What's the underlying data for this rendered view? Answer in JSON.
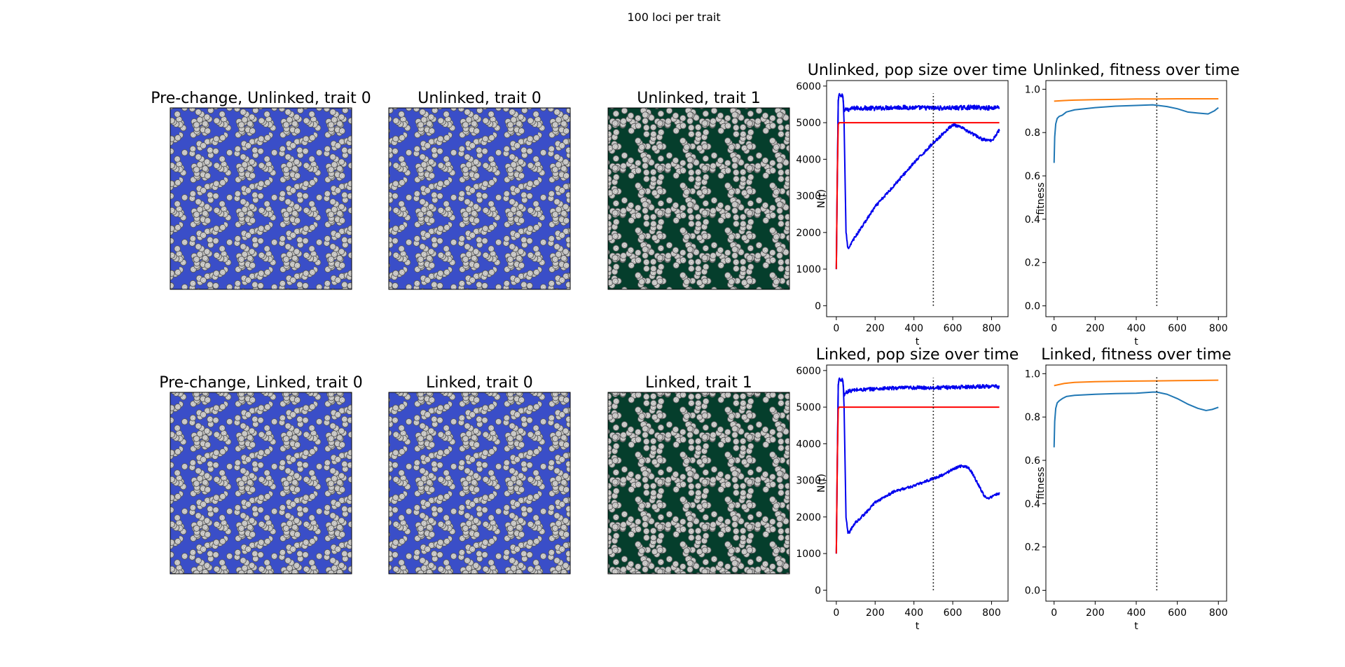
{
  "figure": {
    "suptitle": "100 loci per trait"
  },
  "colors": {
    "trait0_background": "#3a4ec8",
    "trait1_background": "#053e2c",
    "cell_fill": "#c9c9c9",
    "cell_edge": "#555555",
    "pop_series": "#0000ee",
    "capacity_line": "#ff0000",
    "fitness_blue": "#1f77b4",
    "fitness_orange": "#ff7f0e"
  },
  "landscapes": [
    {
      "title": "Pre-change, Unlinked, trait 0",
      "trait": 0
    },
    {
      "title": "Unlinked, trait 0",
      "trait": 0
    },
    {
      "title": "Unlinked, trait 1",
      "trait": 1
    },
    {
      "title": "Pre-change, Linked, trait 0",
      "trait": 0
    },
    {
      "title": "Linked, trait 0",
      "trait": 0
    },
    {
      "title": "Linked, trait 1",
      "trait": 1
    }
  ],
  "chart_data": [
    {
      "type": "line",
      "title": "Unlinked, pop size over time",
      "xlabel": "t",
      "ylabel": "N(t)",
      "xlim": [
        -50,
        885
      ],
      "ylim": [
        -300,
        6150
      ],
      "xticks": [
        0,
        200,
        400,
        600,
        800
      ],
      "yticks": [
        0,
        1000,
        2000,
        3000,
        4000,
        5000,
        6000
      ],
      "vline_x": 500,
      "vline_range": [
        0,
        5800
      ],
      "series": [
        {
          "color": "#0000ee",
          "noise": 60,
          "x": [
            0,
            5,
            10,
            15,
            20,
            25,
            30,
            35,
            40,
            45,
            50,
            60,
            80,
            100,
            150,
            200,
            300,
            400,
            500,
            600,
            700,
            800,
            840
          ],
          "values": [
            1000,
            3500,
            5600,
            5800,
            5750,
            5700,
            5780,
            5650,
            5300,
            5330,
            5350,
            5360,
            5380,
            5400,
            5400,
            5390,
            5420,
            5410,
            5400,
            5400,
            5420,
            5400,
            5440
          ]
        },
        {
          "color": "#0000ee",
          "noise": 40,
          "x": [
            0,
            5,
            10,
            15,
            20,
            25,
            30,
            35,
            40,
            45,
            50,
            60,
            70,
            80,
            100,
            150,
            200,
            300,
            400,
            500,
            550,
            600,
            650,
            700,
            750,
            800,
            840
          ],
          "values": [
            1000,
            3500,
            5600,
            5800,
            5750,
            5700,
            5780,
            5700,
            5000,
            3500,
            2000,
            1550,
            1600,
            1750,
            1900,
            2300,
            2700,
            3300,
            3900,
            4450,
            4700,
            4950,
            4850,
            4700,
            4550,
            4500,
            4800
          ]
        },
        {
          "color": "#ff0000",
          "noise": 0,
          "x": [
            0,
            5,
            10,
            15,
            20,
            840
          ],
          "values": [
            1000,
            3500,
            4950,
            5000,
            5000,
            5000
          ]
        }
      ]
    },
    {
      "type": "line",
      "title": "Unlinked, fitness over time",
      "xlabel": "t",
      "ylabel": "fitness",
      "xlim": [
        -40,
        840
      ],
      "ylim": [
        -0.05,
        1.04
      ],
      "xticks": [
        0,
        200,
        400,
        600,
        800
      ],
      "yticks": [
        0.0,
        0.2,
        0.4,
        0.6,
        0.8,
        1.0
      ],
      "vline_x": 500,
      "vline_range": [
        0,
        0.99
      ],
      "series": [
        {
          "color": "#1f77b4",
          "noise": 0,
          "x": [
            0,
            3,
            8,
            15,
            25,
            40,
            60,
            100,
            200,
            300,
            400,
            480,
            500,
            550,
            600,
            650,
            700,
            750,
            780,
            800
          ],
          "values": [
            0.66,
            0.78,
            0.84,
            0.865,
            0.875,
            0.88,
            0.895,
            0.905,
            0.915,
            0.922,
            0.925,
            0.928,
            0.926,
            0.92,
            0.91,
            0.895,
            0.89,
            0.886,
            0.9,
            0.915
          ]
        },
        {
          "color": "#ff7f0e",
          "noise": 0,
          "x": [
            0,
            50,
            100,
            200,
            300,
            400,
            500,
            600,
            700,
            800
          ],
          "values": [
            0.945,
            0.948,
            0.95,
            0.952,
            0.953,
            0.955,
            0.955,
            0.956,
            0.956,
            0.956
          ]
        }
      ]
    },
    {
      "type": "line",
      "title": "Linked, pop size over time",
      "xlabel": "t",
      "ylabel": "N(t)",
      "xlim": [
        -50,
        885
      ],
      "ylim": [
        -300,
        6150
      ],
      "xticks": [
        0,
        200,
        400,
        600,
        800
      ],
      "yticks": [
        0,
        1000,
        2000,
        3000,
        4000,
        5000,
        6000
      ],
      "vline_x": 500,
      "vline_range": [
        0,
        5800
      ],
      "series": [
        {
          "color": "#0000ee",
          "noise": 50,
          "x": [
            0,
            5,
            10,
            15,
            20,
            25,
            30,
            35,
            40,
            45,
            50,
            60,
            80,
            100,
            150,
            200,
            300,
            400,
            500,
            600,
            700,
            800,
            840
          ],
          "values": [
            1000,
            3500,
            5600,
            5800,
            5750,
            5700,
            5780,
            5650,
            5300,
            5350,
            5400,
            5430,
            5450,
            5470,
            5480,
            5500,
            5520,
            5530,
            5530,
            5540,
            5560,
            5570,
            5550
          ]
        },
        {
          "color": "#0000ee",
          "noise": 35,
          "x": [
            0,
            5,
            10,
            15,
            20,
            25,
            30,
            35,
            40,
            45,
            50,
            60,
            70,
            80,
            100,
            150,
            200,
            300,
            400,
            500,
            550,
            600,
            620,
            650,
            680,
            700,
            730,
            760,
            780,
            800,
            820,
            840
          ],
          "values": [
            1000,
            3500,
            5600,
            5800,
            5750,
            5700,
            5780,
            5700,
            5000,
            3500,
            2000,
            1550,
            1600,
            1700,
            1850,
            2100,
            2400,
            2700,
            2850,
            3050,
            3150,
            3300,
            3350,
            3400,
            3350,
            3200,
            2900,
            2600,
            2500,
            2550,
            2600,
            2650
          ]
        },
        {
          "color": "#ff0000",
          "noise": 0,
          "x": [
            0,
            5,
            10,
            15,
            20,
            840
          ],
          "values": [
            1000,
            3500,
            4950,
            5000,
            5000,
            5000
          ]
        }
      ]
    },
    {
      "type": "line",
      "title": "Linked, fitness over time",
      "xlabel": "t",
      "ylabel": "fitness",
      "xlim": [
        -40,
        840
      ],
      "ylim": [
        -0.05,
        1.04
      ],
      "xticks": [
        0,
        200,
        400,
        600,
        800
      ],
      "yticks": [
        0.0,
        0.2,
        0.4,
        0.6,
        0.8,
        1.0
      ],
      "vline_x": 500,
      "vline_range": [
        0,
        0.99
      ],
      "series": [
        {
          "color": "#1f77b4",
          "noise": 0,
          "x": [
            0,
            3,
            8,
            15,
            25,
            40,
            60,
            100,
            200,
            300,
            400,
            480,
            500,
            550,
            600,
            650,
            700,
            740,
            770,
            800
          ],
          "values": [
            0.66,
            0.78,
            0.84,
            0.865,
            0.875,
            0.885,
            0.895,
            0.9,
            0.905,
            0.908,
            0.91,
            0.915,
            0.915,
            0.905,
            0.885,
            0.86,
            0.84,
            0.83,
            0.835,
            0.845
          ]
        },
        {
          "color": "#ff7f0e",
          "noise": 0,
          "x": [
            0,
            50,
            100,
            200,
            300,
            400,
            500,
            600,
            700,
            800
          ],
          "values": [
            0.945,
            0.955,
            0.96,
            0.963,
            0.965,
            0.966,
            0.967,
            0.968,
            0.969,
            0.97
          ]
        }
      ]
    }
  ]
}
